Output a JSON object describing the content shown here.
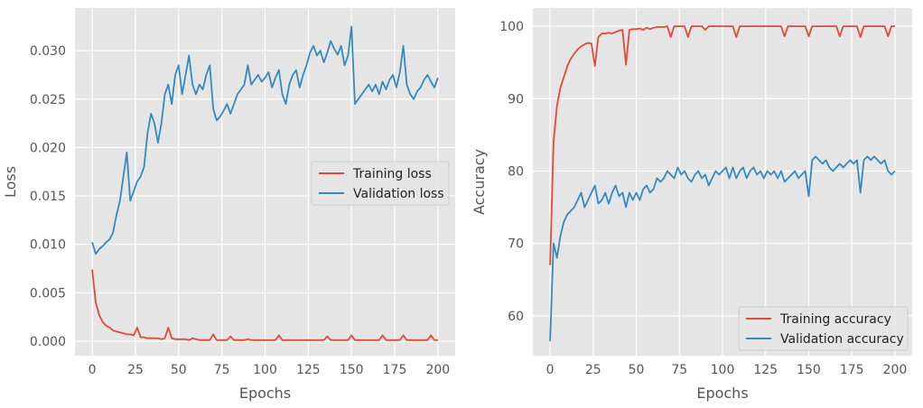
{
  "chart_data": [
    {
      "type": "line",
      "xlabel": "Epochs",
      "ylabel": "Loss",
      "xlim": [
        -10,
        210
      ],
      "ylim": [
        -0.0015,
        0.0344
      ],
      "xticks": [
        0,
        25,
        50,
        75,
        100,
        125,
        150,
        175,
        200
      ],
      "yticks": [
        0.0,
        0.005,
        0.01,
        0.015,
        0.02,
        0.025,
        0.03
      ],
      "ytick_labels": [
        "0.000",
        "0.005",
        "0.010",
        "0.015",
        "0.020",
        "0.025",
        "0.030"
      ],
      "grid": true,
      "legend_position": "center-right",
      "x": [
        0,
        2,
        4,
        6,
        8,
        10,
        12,
        14,
        16,
        18,
        20,
        22,
        24,
        26,
        28,
        30,
        32,
        34,
        36,
        38,
        40,
        42,
        44,
        46,
        48,
        50,
        52,
        54,
        56,
        58,
        60,
        62,
        64,
        66,
        68,
        70,
        72,
        74,
        76,
        78,
        80,
        82,
        84,
        86,
        88,
        90,
        92,
        94,
        96,
        98,
        100,
        102,
        104,
        106,
        108,
        110,
        112,
        114,
        116,
        118,
        120,
        122,
        124,
        126,
        128,
        130,
        132,
        134,
        136,
        138,
        140,
        142,
        144,
        146,
        148,
        150,
        152,
        154,
        156,
        158,
        160,
        162,
        164,
        166,
        168,
        170,
        172,
        174,
        176,
        178,
        180,
        182,
        184,
        186,
        188,
        190,
        192,
        194,
        196,
        198,
        200
      ],
      "series": [
        {
          "name": "Training loss",
          "color": "#E24A33",
          "values": [
            0.0074,
            0.004,
            0.0027,
            0.002,
            0.0016,
            0.0014,
            0.0011,
            0.001,
            0.0009,
            0.0008,
            0.0007,
            0.0007,
            0.0006,
            0.0014,
            0.0004,
            0.0004,
            0.0003,
            0.0003,
            0.0003,
            0.0003,
            0.0002,
            0.0003,
            0.0014,
            0.0003,
            0.0002,
            0.0002,
            0.0002,
            0.0002,
            0.0001,
            0.0003,
            0.0002,
            0.0001,
            0.0001,
            0.0001,
            0.0001,
            0.0007,
            0.0001,
            0.0001,
            0.0001,
            0.0001,
            0.0005,
            0.0001,
            0.0001,
            0.0001,
            0.0001,
            0.0002,
            0.0001,
            0.0001,
            0.0001,
            0.0001,
            0.0001,
            0.0001,
            0.0001,
            0.0001,
            0.0006,
            0.0001,
            0.0001,
            0.0001,
            0.0001,
            0.0001,
            0.0001,
            0.0001,
            0.0001,
            0.0001,
            0.0001,
            0.0001,
            0.0001,
            0.0001,
            0.0005,
            0.0001,
            0.0001,
            0.0001,
            0.0001,
            0.0001,
            0.0001,
            0.0006,
            0.0001,
            0.0001,
            0.0001,
            0.0001,
            0.0001,
            0.0001,
            0.0001,
            0.0001,
            0.0006,
            0.0001,
            0.0001,
            0.0001,
            0.0001,
            0.0001,
            0.0006,
            0.0001,
            0.0001,
            0.0001,
            0.0001,
            0.0001,
            0.0001,
            0.0001,
            0.0006,
            0.0001,
            0.0001
          ]
        },
        {
          "name": "Validation loss",
          "color": "#348ABD",
          "values": [
            0.0102,
            0.009,
            0.0095,
            0.0098,
            0.0102,
            0.0105,
            0.0112,
            0.013,
            0.0145,
            0.017,
            0.0195,
            0.0145,
            0.0155,
            0.0165,
            0.017,
            0.018,
            0.0215,
            0.0235,
            0.0225,
            0.0205,
            0.0225,
            0.0255,
            0.0265,
            0.0245,
            0.0275,
            0.0285,
            0.0255,
            0.0275,
            0.0295,
            0.0265,
            0.0255,
            0.0265,
            0.026,
            0.0275,
            0.0285,
            0.024,
            0.0228,
            0.0232,
            0.0238,
            0.0245,
            0.0235,
            0.0245,
            0.0255,
            0.026,
            0.0265,
            0.0285,
            0.0265,
            0.027,
            0.0275,
            0.0268,
            0.0272,
            0.0278,
            0.0262,
            0.0272,
            0.028,
            0.0255,
            0.0245,
            0.0265,
            0.0275,
            0.028,
            0.0262,
            0.0275,
            0.0285,
            0.0298,
            0.0305,
            0.0295,
            0.03,
            0.0288,
            0.0298,
            0.031,
            0.0302,
            0.0296,
            0.0305,
            0.0285,
            0.0295,
            0.0325,
            0.0245,
            0.025,
            0.0255,
            0.026,
            0.0265,
            0.0258,
            0.0265,
            0.0255,
            0.0268,
            0.026,
            0.027,
            0.0275,
            0.0262,
            0.0278,
            0.0305,
            0.0265,
            0.0255,
            0.025,
            0.0258,
            0.0262,
            0.027,
            0.0275,
            0.0268,
            0.0262,
            0.0272
          ]
        }
      ]
    },
    {
      "type": "line",
      "xlabel": "Epochs",
      "ylabel": "Accuracy",
      "xlim": [
        -10,
        210
      ],
      "ylim": [
        54.5,
        102.5
      ],
      "xticks": [
        0,
        25,
        50,
        75,
        100,
        125,
        150,
        175,
        200
      ],
      "yticks": [
        60,
        70,
        80,
        90,
        100
      ],
      "ytick_labels": [
        "60",
        "70",
        "80",
        "90",
        "100"
      ],
      "grid": true,
      "legend_position": "lower-right",
      "x": [
        0,
        2,
        4,
        6,
        8,
        10,
        12,
        14,
        16,
        18,
        20,
        22,
        24,
        26,
        28,
        30,
        32,
        34,
        36,
        38,
        40,
        42,
        44,
        46,
        48,
        50,
        52,
        54,
        56,
        58,
        60,
        62,
        64,
        66,
        68,
        70,
        72,
        74,
        76,
        78,
        80,
        82,
        84,
        86,
        88,
        90,
        92,
        94,
        96,
        98,
        100,
        102,
        104,
        106,
        108,
        110,
        112,
        114,
        116,
        118,
        120,
        122,
        124,
        126,
        128,
        130,
        132,
        134,
        136,
        138,
        140,
        142,
        144,
        146,
        148,
        150,
        152,
        154,
        156,
        158,
        160,
        162,
        164,
        166,
        168,
        170,
        172,
        174,
        176,
        178,
        180,
        182,
        184,
        186,
        188,
        190,
        192,
        194,
        196,
        198,
        200
      ],
      "series": [
        {
          "name": "Training accuracy",
          "color": "#E24A33",
          "values": [
            67,
            84,
            89,
            91.5,
            93,
            94.5,
            95.5,
            96.2,
            96.8,
            97.2,
            97.5,
            97.7,
            97.6,
            94.5,
            98.5,
            99,
            99,
            99.1,
            99,
            99.2,
            99.4,
            99.5,
            94.7,
            99.5,
            99.6,
            99.6,
            99.7,
            99.5,
            99.8,
            99.6,
            99.8,
            99.9,
            99.9,
            99.9,
            100,
            98.5,
            100,
            100,
            100,
            100,
            98.5,
            100,
            100,
            100,
            100,
            99.5,
            100,
            100,
            100,
            100,
            100,
            100,
            100,
            100,
            98.5,
            100,
            100,
            100,
            100,
            100,
            100,
            100,
            100,
            100,
            100,
            100,
            100,
            100,
            98.6,
            100,
            100,
            100,
            100,
            100,
            100,
            98.6,
            100,
            100,
            100,
            100,
            100,
            100,
            100,
            100,
            98.6,
            100,
            100,
            100,
            100,
            100,
            98.5,
            100,
            100,
            100,
            100,
            100,
            100,
            100,
            98.6,
            100,
            100
          ]
        },
        {
          "name": "Validation accuracy",
          "color": "#348ABD",
          "values": [
            56.5,
            70,
            68,
            71,
            73,
            74,
            74.5,
            75,
            76,
            77,
            75,
            76,
            77,
            78,
            75.5,
            76,
            77,
            75.5,
            77,
            78,
            76.5,
            77,
            75,
            77,
            76,
            77,
            76,
            77.5,
            78,
            77,
            77.5,
            79,
            78.5,
            79,
            80,
            79.5,
            79,
            80.5,
            79.5,
            80,
            79,
            78.5,
            79.5,
            80,
            79,
            79.5,
            78,
            79,
            80,
            79.5,
            80,
            80.5,
            79,
            80.5,
            79,
            80,
            80.5,
            79,
            80,
            80.5,
            79.5,
            80,
            79,
            80,
            79.5,
            80,
            79,
            80,
            78.5,
            79,
            79.5,
            80,
            79,
            79.5,
            80,
            76.5,
            81.5,
            82,
            81.5,
            81,
            81.5,
            80.5,
            80,
            80.5,
            81,
            80.5,
            81,
            81.5,
            81,
            81.5,
            77,
            81.5,
            82,
            81.5,
            82,
            81.5,
            81,
            81.5,
            80,
            79.5,
            80
          ]
        }
      ]
    }
  ]
}
